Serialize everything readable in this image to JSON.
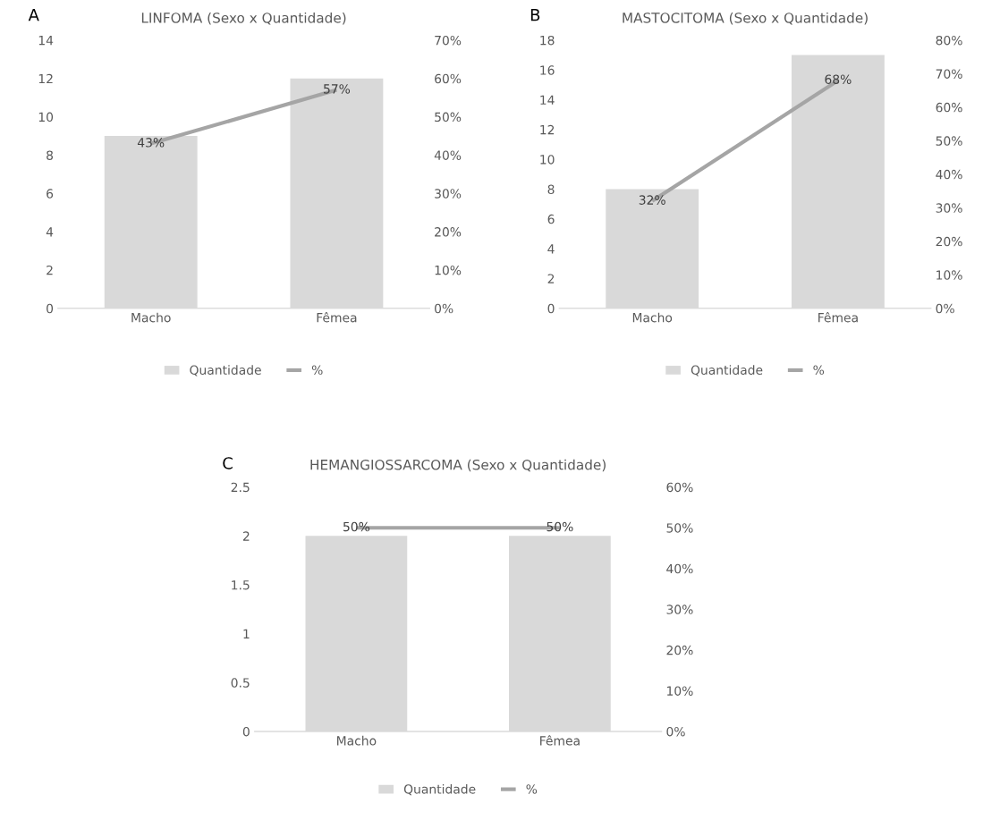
{
  "chart_data": [
    {
      "type": "bar",
      "title": "LINFOMA (Sexo x Quantidade)",
      "annotations": [
        "A"
      ],
      "categories": [
        "Macho",
        "Fêmea"
      ],
      "legend": "bottom",
      "ylim": [
        0,
        14
      ],
      "yticks": [
        0,
        2,
        4,
        6,
        8,
        10,
        12,
        14
      ],
      "y2lim": [
        0,
        70
      ],
      "y2ticks": [
        {
          "value": 0,
          "label": "0%"
        },
        {
          "value": 10,
          "label": "10%"
        },
        {
          "value": 20,
          "label": "20%"
        },
        {
          "value": 30,
          "label": "30%"
        },
        {
          "value": 40,
          "label": "40%"
        },
        {
          "value": 50,
          "label": "50%"
        },
        {
          "value": 60,
          "label": "60%"
        },
        {
          "value": 70,
          "label": "70%"
        }
      ],
      "series": [
        {
          "name": "Quantidade",
          "color": "#d9d9d9",
          "values": [
            9,
            12
          ]
        },
        {
          "name": "%",
          "type": "line",
          "axis": "y2",
          "color": "#a5a5a5",
          "values": [
            43,
            57
          ],
          "value_labels": [
            "43%",
            "57%"
          ]
        }
      ]
    },
    {
      "type": "bar",
      "title": "MASTOCITOMA (Sexo x Quantidade)",
      "annotations": [
        "B"
      ],
      "categories": [
        "Macho",
        "Fêmea"
      ],
      "legend": "bottom",
      "ylim": [
        0,
        18
      ],
      "yticks": [
        0,
        2,
        4,
        6,
        8,
        10,
        12,
        14,
        16,
        18
      ],
      "y2lim": [
        0,
        80
      ],
      "y2ticks": [
        {
          "value": 0,
          "label": "0%"
        },
        {
          "value": 10,
          "label": "10%"
        },
        {
          "value": 20,
          "label": "20%"
        },
        {
          "value": 30,
          "label": "30%"
        },
        {
          "value": 40,
          "label": "40%"
        },
        {
          "value": 50,
          "label": "50%"
        },
        {
          "value": 60,
          "label": "60%"
        },
        {
          "value": 70,
          "label": "70%"
        },
        {
          "value": 80,
          "label": "80%"
        }
      ],
      "series": [
        {
          "name": "Quantidade",
          "color": "#d9d9d9",
          "values": [
            8,
            17
          ]
        },
        {
          "name": "%",
          "type": "line",
          "axis": "y2",
          "color": "#a5a5a5",
          "values": [
            32,
            68
          ],
          "value_labels": [
            "32%",
            "68%"
          ]
        }
      ]
    },
    {
      "type": "bar",
      "title": "HEMANGIOSSARCOMA (Sexo x Quantidade)",
      "annotations": [
        "C"
      ],
      "categories": [
        "Macho",
        "Fêmea"
      ],
      "legend": "bottom",
      "ylim": [
        0,
        2.5
      ],
      "yticks": [
        0,
        0.5,
        1,
        1.5,
        2,
        2.5
      ],
      "y2lim": [
        0,
        60
      ],
      "y2ticks": [
        {
          "value": 0,
          "label": "0%"
        },
        {
          "value": 10,
          "label": "10%"
        },
        {
          "value": 20,
          "label": "20%"
        },
        {
          "value": 30,
          "label": "30%"
        },
        {
          "value": 40,
          "label": "40%"
        },
        {
          "value": 50,
          "label": "50%"
        },
        {
          "value": 60,
          "label": "60%"
        }
      ],
      "series": [
        {
          "name": "Quantidade",
          "color": "#d9d9d9",
          "values": [
            2,
            2
          ]
        },
        {
          "name": "%",
          "type": "line",
          "axis": "y2",
          "color": "#a5a5a5",
          "values": [
            50,
            50
          ],
          "value_labels": [
            "50%",
            "50%"
          ]
        }
      ]
    }
  ]
}
